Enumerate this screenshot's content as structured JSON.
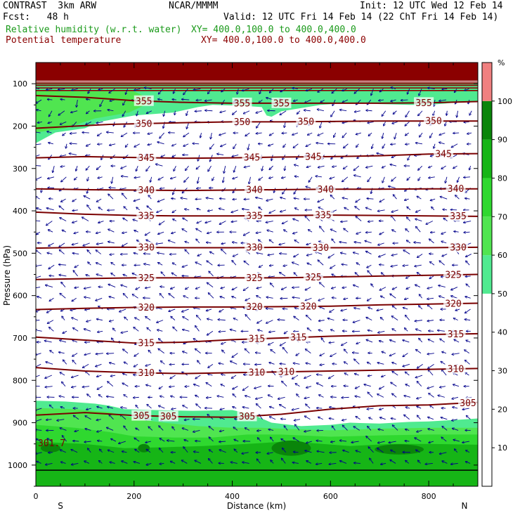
{
  "header": {
    "title": "CONTRAST  3km ARW",
    "org": "NCAR/MMMM",
    "init": "Init: 12 UTC Wed 12 Feb 14",
    "fcst": "Fcst:   48 h",
    "valid": "Valid: 12 UTC Fri 14 Feb 14 (22 ChT Fri 14 Feb 14)",
    "field1_name": "Relative humidity (w.r.t. water)",
    "field1_xy": "XY= 400.0,100.0 to 400.0,400.0",
    "field2_name": "Potential temperature",
    "field2_xy": "XY= 400.0,100.0 to 400.0,400.0",
    "colors": {
      "rh": "#1a9a1a",
      "theta": "#8b0000"
    }
  },
  "chart_data": {
    "type": "cross-section",
    "xlabel": "Distance (km)",
    "ylabel": "Pressure (hPa)",
    "xlim": [
      0,
      900
    ],
    "ylim": [
      1050,
      50
    ],
    "x_ticks": [
      0,
      200,
      400,
      600,
      800
    ],
    "x_tick_labels": [
      "0",
      "200",
      "400",
      "600",
      "800"
    ],
    "y_ticks": [
      100,
      200,
      300,
      400,
      500,
      600,
      700,
      800,
      900,
      1000
    ],
    "y_tick_labels": [
      "100",
      "200",
      "300",
      "400",
      "500",
      "600",
      "700",
      "800",
      "900",
      "1000"
    ],
    "end_labels": {
      "left": "S",
      "right": "N"
    },
    "point_label": "301.7",
    "colorbar": {
      "unit": "%",
      "levels": [
        10,
        20,
        30,
        40,
        50,
        60,
        70,
        80,
        90,
        100
      ],
      "level_labels": [
        "10",
        "20",
        "30",
        "40",
        "50",
        "60",
        "70",
        "80",
        "90",
        "100"
      ],
      "bands": [
        {
          "from": 50,
          "to": 60,
          "color": "#50ea90"
        },
        {
          "from": 60,
          "to": 70,
          "color": "#50e550"
        },
        {
          "from": 70,
          "to": 80,
          "color": "#2fd82f"
        },
        {
          "from": 80,
          "to": 90,
          "color": "#16b516"
        },
        {
          "from": 90,
          "to": 100,
          "color": "#0a850a"
        },
        {
          "from": 100,
          "to": 110,
          "color": "#f08080"
        }
      ]
    },
    "theta_contours": [
      {
        "value": 355,
        "label": "355",
        "points": [
          [
            0,
            128
          ],
          [
            100,
            132
          ],
          [
            200,
            140
          ],
          [
            300,
            144
          ],
          [
            400,
            146
          ],
          [
            500,
            146
          ],
          [
            600,
            146
          ],
          [
            700,
            146
          ],
          [
            800,
            145
          ],
          [
            900,
            142
          ]
        ],
        "labels_at": [
          220,
          420,
          500,
          790
        ]
      },
      {
        "value": 350,
        "label": "350",
        "points": [
          [
            0,
            205
          ],
          [
            80,
            200
          ],
          [
            150,
            196
          ],
          [
            220,
            194
          ],
          [
            300,
            192
          ],
          [
            400,
            190
          ],
          [
            500,
            190
          ],
          [
            600,
            189
          ],
          [
            700,
            188
          ],
          [
            800,
            188
          ],
          [
            900,
            188
          ]
        ],
        "labels_at": [
          220,
          420,
          550,
          810
        ]
      },
      {
        "value": 345,
        "label": "345",
        "points": [
          [
            0,
            275
          ],
          [
            100,
            272
          ],
          [
            200,
            274
          ],
          [
            300,
            276
          ],
          [
            400,
            275
          ],
          [
            500,
            273
          ],
          [
            600,
            272
          ],
          [
            700,
            270
          ],
          [
            800,
            266
          ],
          [
            900,
            265
          ]
        ],
        "labels_at": [
          225,
          440,
          565,
          830
        ]
      },
      {
        "value": 340,
        "label": "340",
        "points": [
          [
            0,
            348
          ],
          [
            100,
            350
          ],
          [
            200,
            351
          ],
          [
            300,
            352
          ],
          [
            400,
            351
          ],
          [
            500,
            350
          ],
          [
            600,
            349
          ],
          [
            700,
            349
          ],
          [
            800,
            348
          ],
          [
            900,
            348
          ]
        ],
        "labels_at": [
          225,
          445,
          590,
          855
        ]
      },
      {
        "value": 335,
        "label": "335",
        "points": [
          [
            0,
            403
          ],
          [
            100,
            408
          ],
          [
            200,
            411
          ],
          [
            300,
            412
          ],
          [
            400,
            412
          ],
          [
            500,
            411
          ],
          [
            600,
            410
          ],
          [
            700,
            411
          ],
          [
            800,
            412
          ],
          [
            900,
            413
          ]
        ],
        "labels_at": [
          225,
          445,
          585,
          860
        ]
      },
      {
        "value": 330,
        "label": "330",
        "points": [
          [
            0,
            488
          ],
          [
            100,
            486
          ],
          [
            200,
            486
          ],
          [
            300,
            487
          ],
          [
            400,
            487
          ],
          [
            500,
            486
          ],
          [
            600,
            487
          ],
          [
            700,
            487
          ],
          [
            800,
            487
          ],
          [
            900,
            486
          ]
        ],
        "labels_at": [
          225,
          445,
          580,
          860
        ]
      },
      {
        "value": 325,
        "label": "325",
        "points": [
          [
            0,
            562
          ],
          [
            100,
            560
          ],
          [
            200,
            558
          ],
          [
            300,
            558
          ],
          [
            400,
            558
          ],
          [
            500,
            558
          ],
          [
            600,
            556
          ],
          [
            700,
            554
          ],
          [
            800,
            552
          ],
          [
            900,
            550
          ]
        ],
        "labels_at": [
          225,
          445,
          565,
          850
        ]
      },
      {
        "value": 320,
        "label": "320",
        "points": [
          [
            0,
            633
          ],
          [
            100,
            630
          ],
          [
            200,
            628
          ],
          [
            300,
            627
          ],
          [
            400,
            627
          ],
          [
            500,
            626
          ],
          [
            600,
            625
          ],
          [
            700,
            622
          ],
          [
            800,
            620
          ],
          [
            900,
            618
          ]
        ],
        "labels_at": [
          225,
          445,
          555,
          850
        ]
      },
      {
        "value": 315,
        "label": "315",
        "points": [
          [
            0,
            698
          ],
          [
            100,
            705
          ],
          [
            200,
            712
          ],
          [
            300,
            710
          ],
          [
            400,
            704
          ],
          [
            500,
            700
          ],
          [
            600,
            696
          ],
          [
            700,
            693
          ],
          [
            800,
            692
          ],
          [
            900,
            690
          ]
        ],
        "labels_at": [
          225,
          450,
          535,
          855
        ]
      },
      {
        "value": 310,
        "label": "310",
        "points": [
          [
            0,
            770
          ],
          [
            100,
            778
          ],
          [
            200,
            782
          ],
          [
            300,
            784
          ],
          [
            400,
            782
          ],
          [
            500,
            780
          ],
          [
            600,
            778
          ],
          [
            700,
            776
          ],
          [
            800,
            774
          ],
          [
            900,
            772
          ]
        ],
        "labels_at": [
          225,
          450,
          510,
          855
        ]
      },
      {
        "value": 305,
        "label": "305",
        "points": [
          [
            0,
            882
          ],
          [
            100,
            876
          ],
          [
            200,
            883
          ],
          [
            300,
            886
          ],
          [
            400,
            887
          ],
          [
            500,
            880
          ],
          [
            600,
            868
          ],
          [
            700,
            860
          ],
          [
            800,
            858
          ],
          [
            900,
            852
          ]
        ],
        "labels_at": [
          215,
          270,
          430,
          880
        ]
      }
    ],
    "rh_fill": [
      {
        "band": "50-60",
        "color": "#50ea90",
        "points": [
          [
            0,
            240
          ],
          [
            40,
            215
          ],
          [
            100,
            205
          ],
          [
            130,
            190
          ],
          [
            200,
            175
          ],
          [
            280,
            168
          ],
          [
            330,
            155
          ],
          [
            360,
            150
          ],
          [
            420,
            152
          ],
          [
            460,
            155
          ],
          [
            470,
            175
          ],
          [
            480,
            178
          ],
          [
            500,
            165
          ],
          [
            580,
            150
          ],
          [
            640,
            145
          ],
          [
            700,
            148
          ],
          [
            760,
            150
          ],
          [
            800,
            150
          ],
          [
            850,
            145
          ],
          [
            900,
            142
          ],
          [
            900,
            98
          ],
          [
            0,
            98
          ]
        ]
      },
      {
        "band": "60-70",
        "color": "#50e550",
        "points": [
          [
            0,
            215
          ],
          [
            60,
            205
          ],
          [
            120,
            182
          ],
          [
            190,
            168
          ],
          [
            240,
            140
          ],
          [
            200,
            118
          ],
          [
            100,
            118
          ],
          [
            0,
            118
          ]
        ]
      },
      {
        "band": "50-60",
        "color": "#50ea90",
        "points": [
          [
            0,
            1050
          ],
          [
            0,
            848
          ],
          [
            60,
            850
          ],
          [
            120,
            855
          ],
          [
            150,
            860
          ],
          [
            180,
            868
          ],
          [
            240,
            870
          ],
          [
            320,
            872
          ],
          [
            400,
            870
          ],
          [
            440,
            880
          ],
          [
            480,
            900
          ],
          [
            540,
            908
          ],
          [
            600,
            905
          ],
          [
            640,
            900
          ],
          [
            700,
            902
          ],
          [
            760,
            898
          ],
          [
            800,
            897
          ],
          [
            860,
            893
          ],
          [
            900,
            890
          ],
          [
            900,
            1050
          ]
        ]
      },
      {
        "band": "60-70",
        "color": "#50e550",
        "points": [
          [
            0,
            1050
          ],
          [
            0,
            865
          ],
          [
            80,
            868
          ],
          [
            150,
            875
          ],
          [
            200,
            890
          ],
          [
            260,
            900
          ],
          [
            330,
            908
          ],
          [
            400,
            912
          ],
          [
            460,
            912
          ],
          [
            520,
            915
          ],
          [
            600,
            918
          ],
          [
            700,
            914
          ],
          [
            800,
            912
          ],
          [
            900,
            912
          ],
          [
            900,
            1050
          ]
        ]
      },
      {
        "band": "70-80",
        "color": "#2fd82f",
        "points": [
          [
            0,
            1050
          ],
          [
            0,
            905
          ],
          [
            80,
            912
          ],
          [
            150,
            922
          ],
          [
            200,
            932
          ],
          [
            280,
            935
          ],
          [
            360,
            935
          ],
          [
            430,
            928
          ],
          [
            500,
            928
          ],
          [
            600,
            933
          ],
          [
            700,
            930
          ],
          [
            800,
            928
          ],
          [
            900,
            928
          ],
          [
            900,
            1050
          ]
        ]
      },
      {
        "band": "80-90",
        "color": "#16b516",
        "points": [
          [
            0,
            1050
          ],
          [
            0,
            945
          ],
          [
            100,
            950
          ],
          [
            180,
            960
          ],
          [
            260,
            958
          ],
          [
            340,
            955
          ],
          [
            430,
            950
          ],
          [
            500,
            945
          ],
          [
            560,
            948
          ],
          [
            640,
            955
          ],
          [
            720,
            950
          ],
          [
            800,
            950
          ],
          [
            900,
            952
          ],
          [
            900,
            1050
          ]
        ]
      }
    ],
    "rh_ellipses": [
      {
        "x": 520,
        "p": 960,
        "rx": 40,
        "rp": 18,
        "color": "#0a850a"
      },
      {
        "x": 740,
        "p": 963,
        "rx": 50,
        "rp": 12,
        "color": "#0a850a"
      },
      {
        "x": 220,
        "p": 960,
        "rx": 12,
        "rp": 10,
        "color": "#0a850a"
      },
      {
        "x": 30,
        "p": 960,
        "rx": 20,
        "rp": 10,
        "color": "#0a850a"
      }
    ],
    "top_block": {
      "from": 50,
      "to": 93,
      "color": "#8b0000"
    },
    "terrain": {
      "value": 1012,
      "color": "#000000"
    },
    "wind_vector_color": "#00008b"
  }
}
